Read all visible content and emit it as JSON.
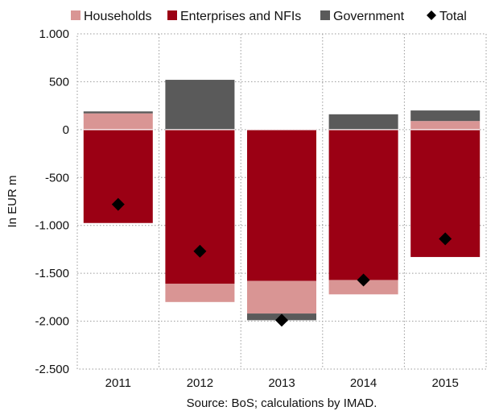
{
  "chart_data": {
    "type": "bar",
    "stacked": true,
    "categories": [
      "2011",
      "2012",
      "2013",
      "2014",
      "2015"
    ],
    "series": [
      {
        "name": "Households",
        "color": "#d99594",
        "values": [
          170,
          -190,
          -340,
          -150,
          90
        ]
      },
      {
        "name": "Enterprises and NFIs",
        "color": "#9b0014",
        "values": [
          -975,
          -1610,
          -1580,
          -1570,
          -1330
        ]
      },
      {
        "name": "Government",
        "color": "#5a5a5a",
        "values": [
          20,
          520,
          -70,
          160,
          110
        ]
      }
    ],
    "total": {
      "name": "Total",
      "color": "#000000",
      "values": [
        -780,
        -1270,
        -1990,
        -1570,
        -1140
      ]
    },
    "ylabel": "In EUR m",
    "ylim": [
      -2500,
      1000
    ],
    "yticks": [
      1000,
      500,
      0,
      -500,
      -1000,
      -1500,
      -2000,
      -2500
    ],
    "ytick_labels": [
      "1.000",
      "500",
      "0",
      "-500",
      "-1.000",
      "-1.500",
      "-2.000",
      "-2.500"
    ],
    "grid": "dotted",
    "legend_position": "top",
    "source": "Source: BoS; calculations by IMAD."
  }
}
